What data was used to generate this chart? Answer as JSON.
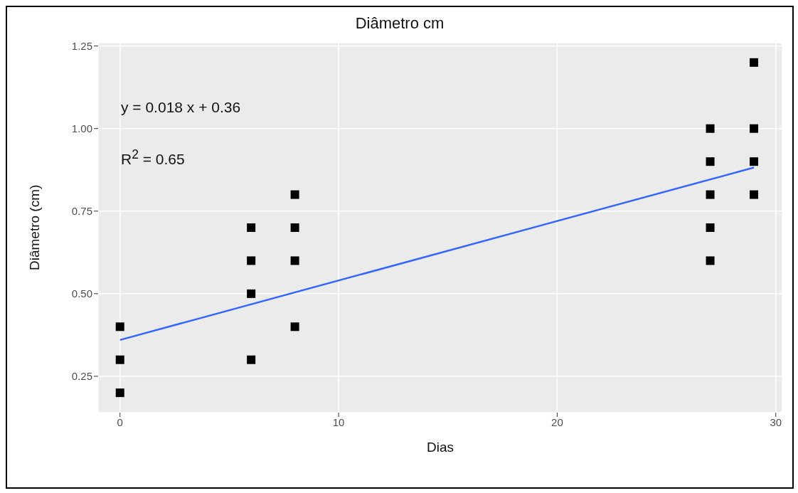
{
  "chart_data": {
    "type": "scatter",
    "title": "Diâmetro cm",
    "xlabel": "Dias",
    "ylabel": "Diâmetro (cm)",
    "xlim": [
      -1,
      30.3
    ],
    "ylim": [
      0.14,
      1.26
    ],
    "xticks": [
      0,
      10,
      20,
      30
    ],
    "yticks": [
      0.25,
      {
        "value": 0.5,
        "label": "0.50"
      },
      0.75,
      {
        "value": 1,
        "label": "1.00"
      },
      1.25
    ],
    "grid": true,
    "annotations": [
      "y = 0.018 x + 0.36",
      "R$^{2}$ = 0.65"
    ],
    "series": [
      {
        "marker": "square",
        "color": "#000000",
        "x": [
          0,
          0,
          0,
          6,
          6,
          6,
          6,
          8,
          8,
          8,
          8,
          27,
          27,
          27,
          27,
          27,
          29,
          29,
          29,
          29
        ],
        "values": [
          0.4,
          0.3,
          0.2,
          0.7,
          0.6,
          0.5,
          0.3,
          0.8,
          0.7,
          0.6,
          0.4,
          1.0,
          0.9,
          0.8,
          0.7,
          0.6,
          1.2,
          1.0,
          0.9,
          0.8
        ]
      },
      {
        "type": "line",
        "color": "#3366ff",
        "line_style": "solid",
        "x": [
          0,
          29
        ],
        "values": [
          0.36,
          0.882
        ]
      }
    ]
  }
}
